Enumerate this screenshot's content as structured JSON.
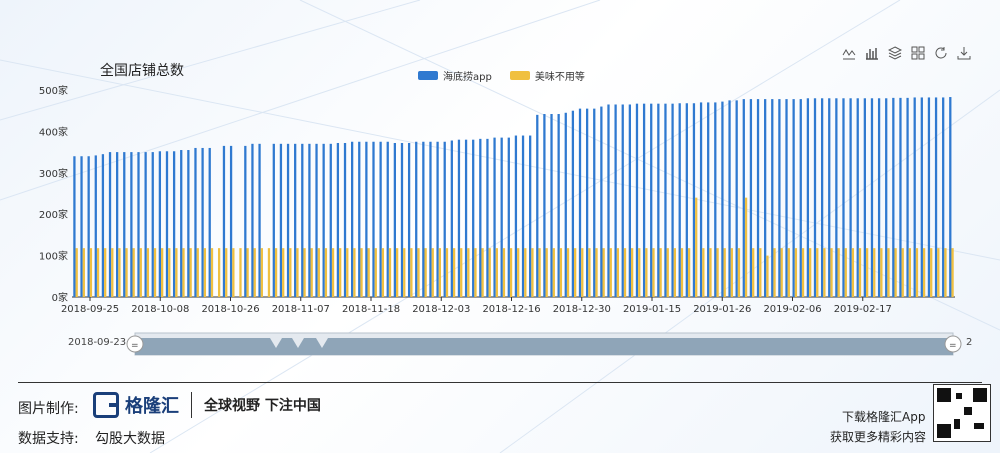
{
  "chart_data": {
    "type": "bar",
    "title": "全国店铺总数",
    "series": [
      {
        "name": "海底捞app",
        "color": "#2f79d0",
        "values": [
          340,
          340,
          340,
          342,
          345,
          350,
          350,
          350,
          350,
          350,
          350,
          350,
          352,
          352,
          352,
          355,
          355,
          360,
          360,
          360,
          0,
          365,
          365,
          0,
          365,
          370,
          370,
          0,
          370,
          370,
          370,
          370,
          370,
          370,
          370,
          370,
          370,
          372,
          372,
          375,
          375,
          375,
          375,
          375,
          375,
          372,
          372,
          372,
          375,
          375,
          375,
          375,
          375,
          378,
          380,
          380,
          380,
          382,
          382,
          385,
          385,
          385,
          390,
          390,
          390,
          440,
          442,
          442,
          442,
          445,
          450,
          455,
          455,
          455,
          460,
          465,
          465,
          465,
          465,
          467,
          467,
          467,
          467,
          467,
          467,
          468,
          468,
          468,
          470,
          470,
          470,
          472,
          475,
          475,
          478,
          478,
          478,
          478,
          478,
          478,
          478,
          478,
          478,
          480,
          480,
          480,
          480,
          480,
          480,
          480,
          480,
          480,
          480,
          480,
          480,
          481,
          481,
          481,
          482,
          482,
          482,
          482,
          482,
          483
        ]
      },
      {
        "name": "美味不用等",
        "color": "#f0c040",
        "values": [
          118,
          118,
          118,
          118,
          118,
          118,
          118,
          118,
          118,
          118,
          118,
          118,
          118,
          118,
          118,
          118,
          118,
          118,
          118,
          118,
          118,
          118,
          118,
          118,
          118,
          118,
          118,
          118,
          118,
          118,
          118,
          118,
          118,
          118,
          118,
          118,
          118,
          118,
          118,
          118,
          118,
          118,
          118,
          118,
          118,
          118,
          118,
          118,
          118,
          118,
          118,
          118,
          118,
          118,
          118,
          118,
          118,
          118,
          118,
          118,
          118,
          118,
          118,
          118,
          118,
          118,
          118,
          118,
          118,
          118,
          118,
          118,
          118,
          118,
          118,
          118,
          118,
          118,
          118,
          118,
          118,
          118,
          118,
          118,
          118,
          118,
          118,
          240,
          118,
          118,
          118,
          118,
          118,
          118,
          240,
          118,
          118,
          100,
          118,
          118,
          118,
          118,
          118,
          118,
          118,
          118,
          118,
          118,
          118,
          118,
          118,
          118,
          118,
          118,
          118,
          118,
          118,
          118,
          118,
          118,
          118,
          118,
          118,
          118
        ]
      }
    ],
    "ylim": [
      0,
      500
    ],
    "yticks": [
      "0家",
      "100家",
      "200家",
      "300家",
      "400家",
      "500家"
    ],
    "xticks": [
      "2018-09-25",
      "2018-10-08",
      "2018-10-26",
      "2018-11-07",
      "2018-11-18",
      "2018-12-03",
      "2018-12-16",
      "2018-12-30",
      "2019-01-15",
      "2019-01-26",
      "2019-02-06",
      "2019-02-17"
    ],
    "grid": false,
    "legend": "top-center"
  },
  "slider": {
    "start_label": "2018-09-23",
    "end_label": "2"
  },
  "footer": {
    "made_by_label": "图片制作:",
    "brand_name": "格隆汇",
    "slogan": "全球视野 下注中国",
    "data_support_label": "数据支持:",
    "data_source": "勾股大数据",
    "download_line": "下载格隆汇App",
    "more_line": "获取更多精彩内容"
  },
  "toolbox": {
    "icons": [
      "line-chart-icon",
      "bar-chart-icon",
      "stack-icon",
      "tiled-icon",
      "refresh-icon",
      "download-icon"
    ]
  }
}
